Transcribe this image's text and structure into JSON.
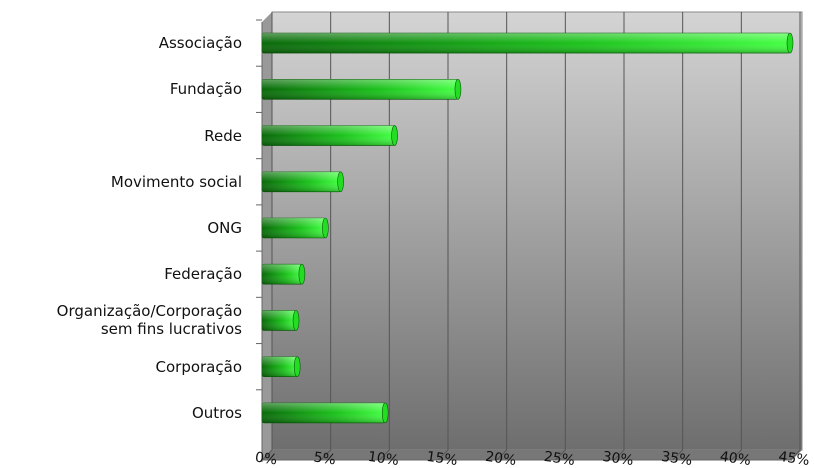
{
  "chart_data": {
    "type": "bar",
    "orientation": "horizontal",
    "categories": [
      "Associação",
      "Fundação",
      "Rede",
      "Movimento social",
      "ONG",
      "Federação",
      "Organização/Corporação\nsem fins lucrativos",
      "Corporação",
      "Outros"
    ],
    "values": [
      45,
      16.7,
      11.3,
      6.7,
      5.4,
      3.4,
      2.9,
      3.0,
      10.5
    ],
    "color": "#22dd22",
    "xlim": [
      0,
      45
    ],
    "xticks": [
      {
        "value": 0,
        "label": "0%"
      },
      {
        "value": 5,
        "label": "5%"
      },
      {
        "value": 10,
        "label": "10%"
      },
      {
        "value": 15,
        "label": "15%"
      },
      {
        "value": 20,
        "label": "20%"
      },
      {
        "value": 25,
        "label": "25%"
      },
      {
        "value": 30,
        "label": "30%"
      },
      {
        "value": 35,
        "label": "35%"
      },
      {
        "value": 40,
        "label": "40%"
      },
      {
        "value": 45,
        "label": "45%"
      }
    ],
    "grid": true
  }
}
